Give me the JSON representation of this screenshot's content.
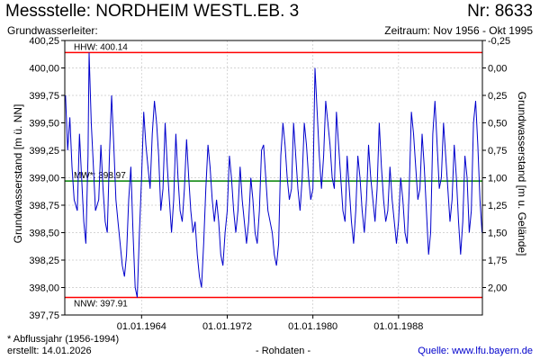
{
  "header": {
    "title": "Messstelle: NORDHEIM WESTL.EB. 3",
    "number": "Nr: 8633",
    "aquifer_label": "Grundwasserleiter:",
    "period": "Zeitraum: Nov 1956 - Okt 1995"
  },
  "footer": {
    "footnote": "* Abflussjahr (1956-1994)",
    "created": "erstellt:  14.01.2026",
    "raw_data": "- Rohdaten -",
    "source": "Quelle:  www.lfu.bayern.de"
  },
  "colors": {
    "series": "#0000cc",
    "extreme_lines": "#ff0000",
    "mean_line": "#008000",
    "grid": "#c8c8c8"
  },
  "chart_data": {
    "type": "line",
    "xlabel": "",
    "ylabel": "Grundwasserstand [m ü. NN]",
    "ylabel_right": "Grundwasserstand [m u. Gelände]",
    "xlim": [
      1956.83,
      1995.83
    ],
    "ylim": [
      397.75,
      400.25
    ],
    "ylim_right": [
      -0.25,
      2.25
    ],
    "grid": true,
    "x_ticks": [
      1964,
      1972,
      1980,
      1988
    ],
    "x_tick_labels": [
      "01.01.1964",
      "01.01.1972",
      "01.01.1980",
      "01.01.1988"
    ],
    "y_ticks": [
      397.75,
      398.0,
      398.25,
      398.5,
      398.75,
      399.0,
      399.25,
      399.5,
      399.75,
      400.0,
      400.25
    ],
    "y_tick_labels": [
      "397,75",
      "398,00",
      "398,25",
      "398,50",
      "398,75",
      "399,00",
      "399,25",
      "399,50",
      "399,75",
      "400,00",
      "400,25"
    ],
    "y_right_ticks": [
      -0.25,
      0.0,
      0.25,
      0.5,
      0.75,
      1.0,
      1.25,
      1.5,
      1.75,
      2.0
    ],
    "y_right_tick_labels": [
      "-0,25",
      "0,00",
      "0,25",
      "0,50",
      "0,75",
      "1,00",
      "1,25",
      "1,50",
      "1,75",
      "2,00"
    ],
    "reference_lines": [
      {
        "label": "HHW: 400.14",
        "value": 400.14,
        "kind": "max"
      },
      {
        "label": "MW*: 398.97",
        "value": 398.97,
        "kind": "mean"
      },
      {
        "label": "NNW: 397.91",
        "value": 397.91,
        "kind": "min"
      }
    ],
    "series": [
      {
        "x": [
          1956.9,
          1957.1,
          1957.3,
          1957.5,
          1957.7,
          1958.0,
          1958.2,
          1958.4,
          1958.6,
          1958.8,
          1959.0,
          1959.1,
          1959.3,
          1959.5,
          1959.7,
          1960.0,
          1960.2,
          1960.4,
          1960.6,
          1960.8,
          1961.0,
          1961.2,
          1961.4,
          1961.6,
          1961.8,
          1962.0,
          1962.2,
          1962.4,
          1962.6,
          1962.8,
          1963.0,
          1963.2,
          1963.4,
          1963.6,
          1963.8,
          1964.0,
          1964.2,
          1964.4,
          1964.6,
          1964.8,
          1965.0,
          1965.2,
          1965.4,
          1965.6,
          1965.8,
          1966.0,
          1966.2,
          1966.4,
          1966.6,
          1966.8,
          1967.0,
          1967.2,
          1967.4,
          1967.6,
          1967.8,
          1968.0,
          1968.2,
          1968.4,
          1968.6,
          1968.8,
          1969.0,
          1969.2,
          1969.4,
          1969.6,
          1969.8,
          1970.0,
          1970.2,
          1970.4,
          1970.6,
          1970.8,
          1971.0,
          1971.2,
          1971.4,
          1971.6,
          1971.8,
          1972.0,
          1972.2,
          1972.4,
          1972.6,
          1972.8,
          1973.0,
          1973.2,
          1973.4,
          1973.6,
          1973.8,
          1974.0,
          1974.2,
          1974.4,
          1974.6,
          1974.8,
          1975.0,
          1975.2,
          1975.4,
          1975.6,
          1975.8,
          1976.0,
          1976.2,
          1976.4,
          1976.6,
          1976.8,
          1977.0,
          1977.2,
          1977.4,
          1977.6,
          1977.8,
          1978.0,
          1978.2,
          1978.4,
          1978.6,
          1978.8,
          1979.0,
          1979.2,
          1979.4,
          1979.6,
          1979.8,
          1980.0,
          1980.2,
          1980.4,
          1980.6,
          1980.8,
          1981.0,
          1981.2,
          1981.4,
          1981.6,
          1981.8,
          1982.0,
          1982.2,
          1982.4,
          1982.6,
          1982.8,
          1983.0,
          1983.2,
          1983.4,
          1983.6,
          1983.8,
          1984.0,
          1984.2,
          1984.4,
          1984.6,
          1984.8,
          1985.0,
          1985.2,
          1985.4,
          1985.6,
          1985.8,
          1986.0,
          1986.2,
          1986.4,
          1986.6,
          1986.8,
          1987.0,
          1987.2,
          1987.4,
          1987.6,
          1987.8,
          1988.0,
          1988.2,
          1988.4,
          1988.6,
          1988.8,
          1989.0,
          1989.2,
          1989.4,
          1989.6,
          1989.8,
          1990.0,
          1990.2,
          1990.4,
          1990.6,
          1990.8,
          1991.0,
          1991.2,
          1991.4,
          1991.6,
          1991.8,
          1992.0,
          1992.2,
          1992.4,
          1992.6,
          1992.8,
          1993.0,
          1993.2,
          1993.4,
          1993.6,
          1993.8,
          1994.0,
          1994.2,
          1994.4,
          1994.6,
          1994.8,
          1995.0,
          1995.2,
          1995.4,
          1995.6,
          1995.8
        ],
        "y": [
          399.75,
          399.25,
          399.55,
          399.1,
          398.8,
          398.7,
          399.4,
          399.0,
          398.6,
          398.4,
          399.2,
          400.14,
          399.5,
          399.1,
          398.7,
          398.8,
          399.3,
          398.9,
          398.6,
          398.5,
          399.2,
          399.75,
          399.3,
          398.8,
          398.6,
          398.4,
          398.2,
          398.1,
          398.3,
          398.8,
          399.1,
          398.5,
          398.0,
          397.91,
          398.5,
          399.0,
          399.6,
          399.3,
          399.1,
          398.9,
          399.4,
          399.7,
          399.5,
          399.2,
          398.7,
          398.9,
          399.5,
          399.1,
          398.8,
          398.5,
          398.8,
          399.4,
          399.0,
          398.7,
          398.6,
          398.9,
          399.35,
          399.0,
          398.7,
          398.5,
          398.6,
          398.3,
          398.1,
          398.0,
          398.4,
          398.9,
          399.3,
          399.1,
          398.8,
          398.6,
          398.8,
          398.6,
          398.3,
          398.2,
          398.5,
          398.7,
          399.2,
          399.0,
          398.7,
          398.5,
          398.7,
          399.1,
          398.8,
          398.6,
          398.4,
          398.6,
          399.0,
          398.8,
          398.5,
          398.4,
          398.7,
          399.25,
          399.3,
          399.0,
          398.7,
          398.6,
          398.5,
          398.3,
          398.2,
          398.4,
          399.2,
          399.5,
          399.3,
          399.0,
          398.8,
          398.9,
          399.5,
          399.2,
          398.9,
          398.7,
          399.0,
          399.5,
          399.3,
          399.0,
          398.8,
          398.9,
          400.0,
          399.6,
          399.2,
          398.9,
          399.2,
          399.7,
          399.5,
          399.3,
          399.0,
          398.9,
          399.6,
          399.3,
          399.0,
          398.7,
          398.6,
          399.2,
          398.9,
          398.6,
          398.4,
          398.7,
          399.2,
          399.0,
          398.7,
          398.5,
          398.8,
          399.3,
          399.0,
          398.8,
          398.6,
          398.9,
          399.5,
          399.1,
          398.8,
          398.6,
          398.7,
          399.1,
          398.8,
          398.6,
          398.4,
          398.6,
          399.0,
          398.8,
          398.5,
          398.4,
          398.9,
          399.6,
          399.4,
          399.1,
          398.8,
          398.9,
          399.4,
          399.1,
          398.7,
          398.3,
          398.5,
          399.4,
          399.7,
          399.3,
          398.9,
          399.0,
          399.5,
          399.2,
          398.9,
          398.6,
          398.8,
          399.3,
          399.0,
          398.6,
          398.3,
          398.6,
          399.2,
          399.0,
          398.5,
          398.7,
          399.5,
          399.7,
          399.3,
          398.8,
          398.5
        ]
      }
    ]
  }
}
